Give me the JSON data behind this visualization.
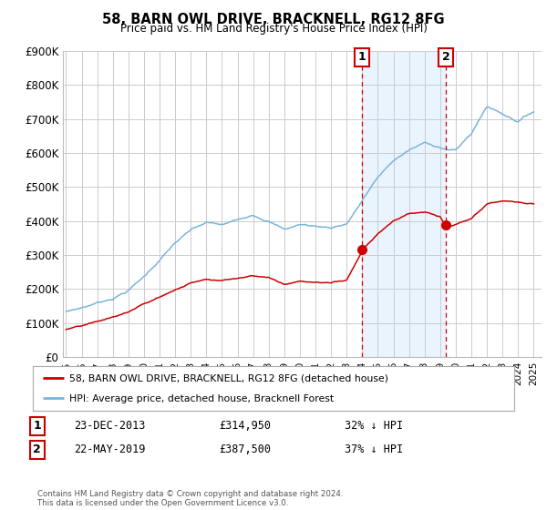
{
  "title": "58, BARN OWL DRIVE, BRACKNELL, RG12 8FG",
  "subtitle": "Price paid vs. HM Land Registry's House Price Index (HPI)",
  "hpi_color": "#7ab4d8",
  "house_color": "#cc0000",
  "vline_color": "#cc0000",
  "shade_color": "#ddeeff",
  "ylim": [
    0,
    900000
  ],
  "yticks": [
    0,
    100000,
    200000,
    300000,
    400000,
    500000,
    600000,
    700000,
    800000,
    900000
  ],
  "ytick_labels": [
    "£0",
    "£100K",
    "£200K",
    "£300K",
    "£400K",
    "£500K",
    "£600K",
    "£700K",
    "£800K",
    "£900K"
  ],
  "xlim_start": 1994.8,
  "xlim_end": 2025.5,
  "marker1_x": 2013.97,
  "marker1_y": 314950,
  "marker1_label": "1",
  "marker1_date": "23-DEC-2013",
  "marker1_price": "£314,950",
  "marker1_note": "32% ↓ HPI",
  "marker2_x": 2019.37,
  "marker2_y": 387500,
  "marker2_label": "2",
  "marker2_date": "22-MAY-2019",
  "marker2_price": "£387,500",
  "marker2_note": "37% ↓ HPI",
  "legend_house": "58, BARN OWL DRIVE, BRACKNELL, RG12 8FG (detached house)",
  "legend_hpi": "HPI: Average price, detached house, Bracknell Forest",
  "footer": "Contains HM Land Registry data © Crown copyright and database right 2024.\nThis data is licensed under the Open Government Licence v3.0.",
  "background_color": "#ffffff",
  "grid_color": "#cccccc"
}
